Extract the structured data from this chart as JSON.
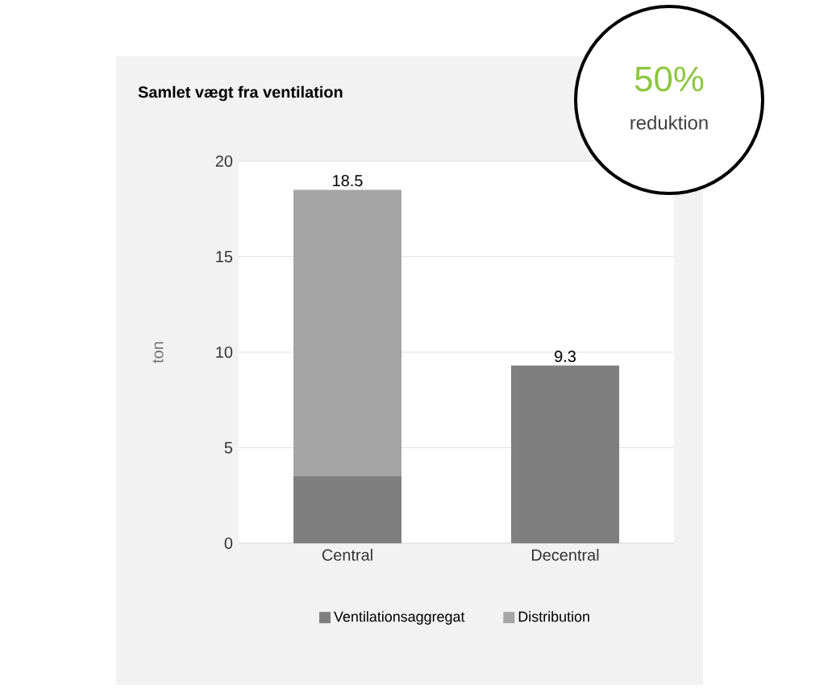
{
  "chart_data": {
    "type": "bar",
    "title": "Samlet vægt fra ventilation",
    "ylabel": "ton",
    "categories": [
      "Central",
      "Decentral"
    ],
    "series": [
      {
        "name": "Ventilationsaggregat",
        "color": "#7f7f7f",
        "values": [
          3.5,
          9.3
        ]
      },
      {
        "name": "Distribution",
        "color": "#a5a5a5",
        "values": [
          15.0,
          null
        ]
      }
    ],
    "stacked": true,
    "totals": [
      "18.5",
      "9.3"
    ],
    "ylim": [
      0,
      20
    ],
    "yticks": [
      0,
      5,
      10,
      15,
      20
    ],
    "grid": "y",
    "legend": "bottom",
    "annotations": [
      "50%",
      "reduktion"
    ]
  }
}
